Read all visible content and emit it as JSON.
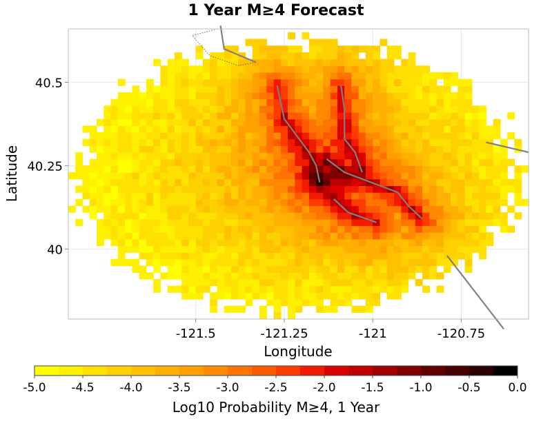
{
  "chart_data": {
    "type": "heatmap",
    "title": "1 Year M≥4 Forecast",
    "xlabel": "Longitude",
    "ylabel": "Latitude",
    "xlim": [
      -121.86,
      -120.56
    ],
    "ylim": [
      39.79,
      40.66
    ],
    "x_ticks": [
      {
        "value": -121.5,
        "label": "-121.5"
      },
      {
        "value": -121.25,
        "label": "-121.25"
      },
      {
        "value": -121.0,
        "label": "-121"
      },
      {
        "value": -120.75,
        "label": "-120.75"
      }
    ],
    "y_ticks": [
      {
        "value": 40.5,
        "label": "40.5"
      },
      {
        "value": 40.25,
        "label": "40.25"
      },
      {
        "value": 40.0,
        "label": "40"
      }
    ],
    "grid": true,
    "grid_spacing_deg": 0.02,
    "field_model": {
      "description_units": "log10 probability of M>=4 in 1 year",
      "background_min": -5.0,
      "fault_traces_lonlat": [
        [
          [
            -121.27,
            40.49
          ],
          [
            -121.25,
            40.39
          ],
          [
            -121.18,
            40.29
          ],
          [
            -121.16,
            40.25
          ],
          [
            -121.15,
            40.2
          ]
        ],
        [
          [
            -121.09,
            40.49
          ],
          [
            -121.08,
            40.42
          ],
          [
            -121.08,
            40.33
          ],
          [
            -121.05,
            40.29
          ],
          [
            -121.03,
            40.23
          ]
        ],
        [
          [
            -121.13,
            40.27
          ],
          [
            -121.08,
            40.23
          ],
          [
            -120.93,
            40.17
          ],
          [
            -120.9,
            40.13
          ],
          [
            -120.86,
            40.09
          ]
        ],
        [
          [
            -121.11,
            40.15
          ],
          [
            -121.07,
            40.11
          ],
          [
            -120.99,
            40.08
          ]
        ]
      ],
      "hotspot_lonlat": [
        -121.13,
        40.21
      ],
      "hotspot_peak": -0.45
    },
    "overlay_lines": [
      {
        "name": "fault-trace",
        "points": [
          [
            -121.27,
            40.49
          ],
          [
            -121.25,
            40.39
          ],
          [
            -121.18,
            40.29
          ],
          [
            -121.16,
            40.25
          ],
          [
            -121.15,
            40.2
          ]
        ]
      },
      {
        "name": "fault-trace",
        "points": [
          [
            -121.09,
            40.49
          ],
          [
            -121.08,
            40.42
          ],
          [
            -121.08,
            40.33
          ],
          [
            -121.05,
            40.29
          ],
          [
            -121.03,
            40.23
          ]
        ]
      },
      {
        "name": "fault-trace",
        "points": [
          [
            -121.13,
            40.27
          ],
          [
            -121.08,
            40.23
          ],
          [
            -120.93,
            40.17
          ],
          [
            -120.9,
            40.13
          ],
          [
            -120.86,
            40.09
          ]
        ]
      },
      {
        "name": "fault-trace",
        "points": [
          [
            -121.11,
            40.15
          ],
          [
            -121.07,
            40.11
          ],
          [
            -120.99,
            40.08
          ]
        ]
      },
      {
        "name": "fault-trace",
        "points": [
          [
            -121.43,
            40.67
          ],
          [
            -121.42,
            40.6
          ],
          [
            -121.33,
            40.56
          ]
        ]
      },
      {
        "name": "fault-trace",
        "points": [
          [
            -120.68,
            40.32
          ],
          [
            -120.56,
            40.29
          ]
        ]
      },
      {
        "name": "fault-trace",
        "points": [
          [
            -120.79,
            39.98
          ],
          [
            -120.63,
            39.76
          ]
        ]
      }
    ],
    "dotted_outline": [
      [
        -121.44,
        40.66
      ],
      [
        -121.51,
        40.64
      ],
      [
        -121.46,
        40.58
      ],
      [
        -121.38,
        40.55
      ],
      [
        -121.33,
        40.56
      ]
    ],
    "colorbar": {
      "label": "Log10 Probability M≥4, 1 Year",
      "range": [
        -5.0,
        0.0
      ],
      "ticks": [
        "-5.0",
        "-4.5",
        "-4.0",
        "-3.5",
        "-3.0",
        "-2.5",
        "-2.0",
        "-1.5",
        "-1.0",
        "-0.5",
        "0.0"
      ],
      "tick_values": [
        -5.0,
        -4.5,
        -4.0,
        -3.5,
        -3.0,
        -2.5,
        -2.0,
        -1.5,
        -1.0,
        -0.5,
        0.0
      ],
      "bins": 20,
      "colors": [
        "#ffff00",
        "#fff000",
        "#ffe000",
        "#ffd000",
        "#ffc000",
        "#ffb000",
        "#ff9f00",
        "#ff8a00",
        "#ff7300",
        "#ff5a00",
        "#ff3c00",
        "#f21b00",
        "#dd0000",
        "#c00000",
        "#a00000",
        "#800000",
        "#620000",
        "#460000",
        "#2a0000",
        "#000000"
      ]
    }
  }
}
